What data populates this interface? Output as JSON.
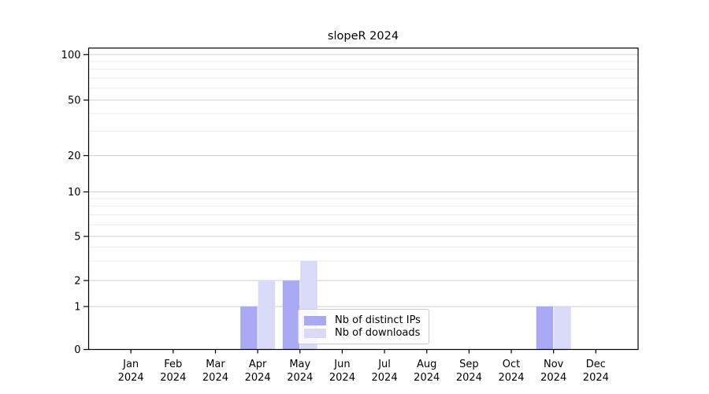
{
  "chart_data": {
    "type": "bar",
    "title": "slopeR 2024",
    "categories": [
      "Jan",
      "Feb",
      "Mar",
      "Apr",
      "May",
      "Jun",
      "Jul",
      "Aug",
      "Sep",
      "Oct",
      "Nov",
      "Dec"
    ],
    "category_year": "2024",
    "series": [
      {
        "name": "Nb of distinct IPs",
        "color": "#a9a9f5",
        "values": [
          0,
          0,
          0,
          1,
          2,
          0,
          0,
          0,
          0,
          0,
          1,
          0
        ]
      },
      {
        "name": "Nb of downloads",
        "color": "#d9d9f8",
        "values": [
          0,
          0,
          0,
          2,
          3,
          0,
          0,
          0,
          0,
          0,
          1,
          0
        ]
      }
    ],
    "yticks": [
      0,
      1,
      2,
      5,
      10,
      20,
      50,
      100
    ],
    "minor_gridlines": [
      3,
      4,
      6,
      7,
      8,
      9,
      30,
      40,
      60,
      70,
      80,
      90
    ],
    "yscale": "log (linear segment from 0 to 1)",
    "ylim": [
      0,
      112
    ],
    "xlabel": "",
    "ylabel": "",
    "grid": "horizontal major + minor",
    "legend_position": "inside bottom-center",
    "colors": {
      "major_gridline": "#cfcfcf",
      "minor_gridline": "#e9e9e9",
      "axis": "#000000"
    }
  }
}
